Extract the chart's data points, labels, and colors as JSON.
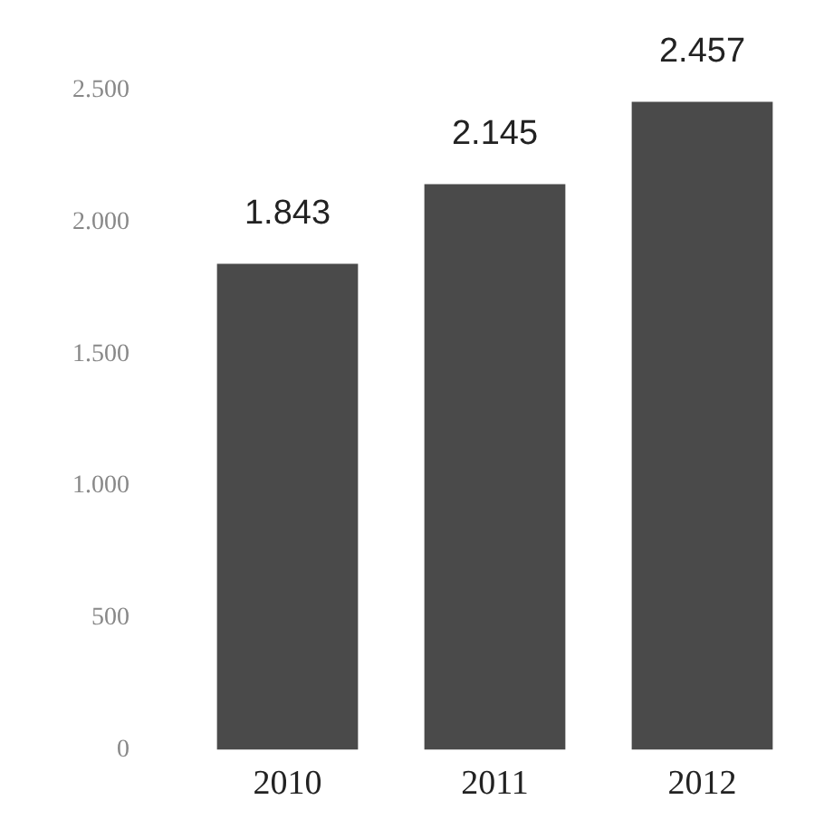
{
  "chart_data": {
    "type": "bar",
    "categories": [
      "2010",
      "2011",
      "2012"
    ],
    "values": [
      1843,
      2145,
      2457
    ],
    "value_labels": [
      "1.843",
      "2.145",
      "2.457"
    ],
    "color": "#4a4a4a",
    "ylim": [
      0,
      2500
    ],
    "yticks": [
      0,
      {
        "value": 500,
        "label": "500"
      },
      {
        "value": 1000,
        "label": "1.000"
      },
      {
        "value": 1500,
        "label": "1.500"
      },
      {
        "value": 2000,
        "label": "2.000"
      },
      {
        "value": 2500,
        "label": "2.500"
      }
    ],
    "grid": false,
    "legend": false
  }
}
